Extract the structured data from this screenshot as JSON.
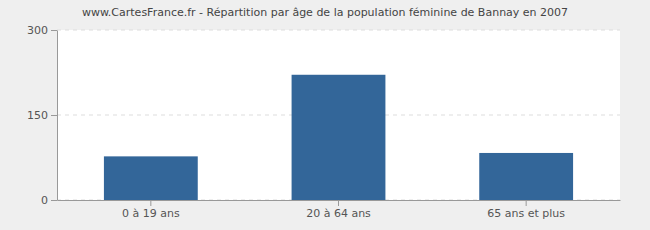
{
  "chart_data": {
    "type": "bar",
    "title": "www.CartesFrance.fr - Répartition par âge de la population féminine de Bannay en 2007",
    "categories": [
      "0 à 19 ans",
      "20 à 64 ans",
      "65 ans et plus"
    ],
    "values": [
      77,
      221,
      83
    ],
    "color": "#336699",
    "ylim": [
      0,
      300
    ],
    "yticks": [
      0,
      150,
      300
    ],
    "grid": true
  }
}
